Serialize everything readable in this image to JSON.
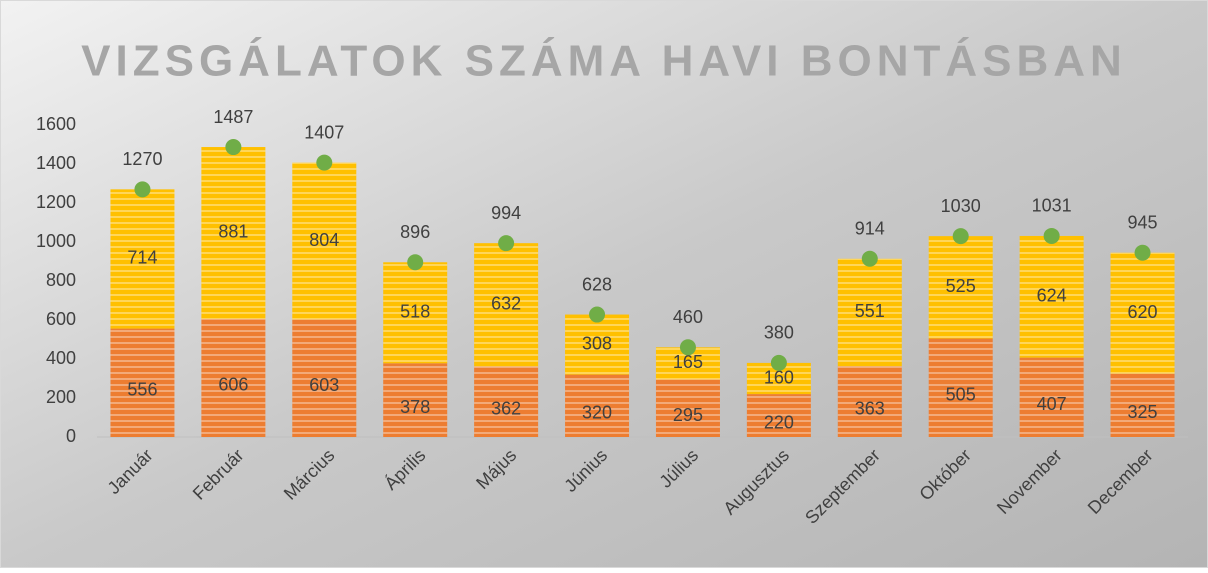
{
  "chart_data": {
    "type": "bar",
    "stacked": true,
    "title": "VIZSGÁLATOK SZÁMA HAVI BONTÁSBAN",
    "categories": [
      "Január",
      "Február",
      "Március",
      "Április",
      "Május",
      "Június",
      "Július",
      "Augusztus",
      "Szeptember",
      "Október",
      "November",
      "December"
    ],
    "series": [
      {
        "color": "#ed7d31",
        "values": [
          556,
          606,
          603,
          378,
          362,
          320,
          295,
          220,
          363,
          505,
          407,
          325
        ]
      },
      {
        "color": "#ffc000",
        "values": [
          714,
          881,
          804,
          518,
          632,
          308,
          165,
          160,
          551,
          525,
          624,
          620
        ]
      },
      {
        "color": "#70ad47",
        "kind": "marker",
        "values": [
          1270,
          1487,
          1407,
          896,
          994,
          628,
          460,
          380,
          914,
          1030,
          1031,
          945
        ]
      }
    ],
    "ylim": [
      0,
      1600
    ],
    "yticks": [
      0,
      200,
      400,
      600,
      800,
      1000,
      1200,
      1400,
      1600
    ],
    "grid": false
  }
}
